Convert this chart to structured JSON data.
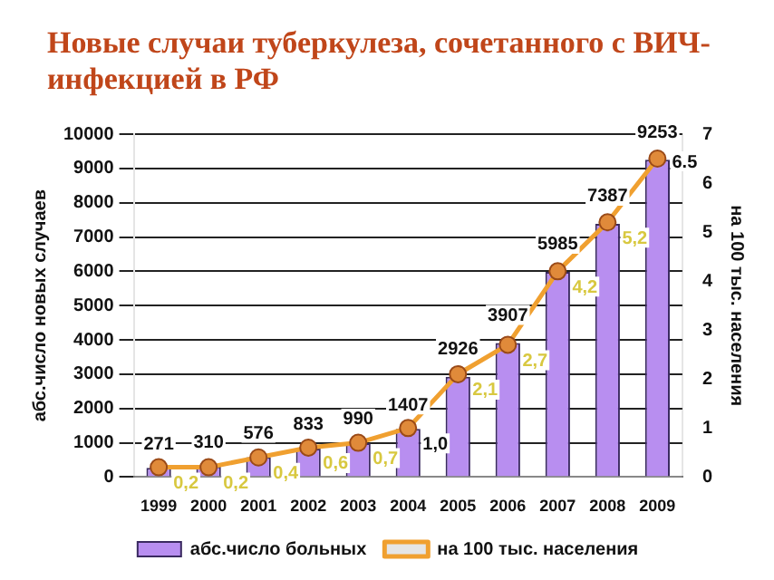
{
  "chart_data": {
    "type": "bar",
    "title": "Новые случаи туберкулеза, сочетанного с ВИЧ-инфекцией в РФ",
    "ylabel": "абс.число новых случаев",
    "y2label": "на 100 тыс. населения",
    "categories": [
      "1999",
      "2000",
      "2001",
      "2002",
      "2003",
      "2004",
      "2005",
      "2006",
      "2007",
      "2008",
      "2009"
    ],
    "series": [
      {
        "name": "абс.число больных",
        "color": "#b88ef0",
        "values": [
          271,
          310,
          576,
          833,
          990,
          1407,
          2926,
          3907,
          5985,
          7387,
          9253
        ],
        "value_labels": [
          "271",
          "310",
          "576",
          "833",
          "990",
          "1407",
          "2926",
          "3907",
          "5985",
          "7387",
          "9253"
        ]
      },
      {
        "name": "на 100 тыс. населения",
        "type": "line",
        "axis": "y2",
        "color": "#f0a030",
        "values": [
          0.2,
          0.2,
          0.4,
          0.6,
          0.7,
          1.0,
          2.1,
          2.7,
          4.2,
          5.2,
          6.5
        ],
        "value_labels": [
          "0,2",
          "0,2",
          "0,4",
          "0,6",
          "0,7",
          "1,0",
          "2,1",
          "2,7",
          "4,2",
          "5,2",
          "6.5"
        ]
      }
    ],
    "ylim": [
      0,
      10000
    ],
    "yticks": [
      0,
      1000,
      2000,
      3000,
      4000,
      5000,
      6000,
      7000,
      8000,
      9000,
      10000
    ],
    "y2lim": [
      0,
      7
    ],
    "y2ticks": [
      0,
      1,
      2,
      3,
      4,
      5,
      6,
      7
    ],
    "grid": "y",
    "legend": "bottom",
    "marker": "circle"
  }
}
